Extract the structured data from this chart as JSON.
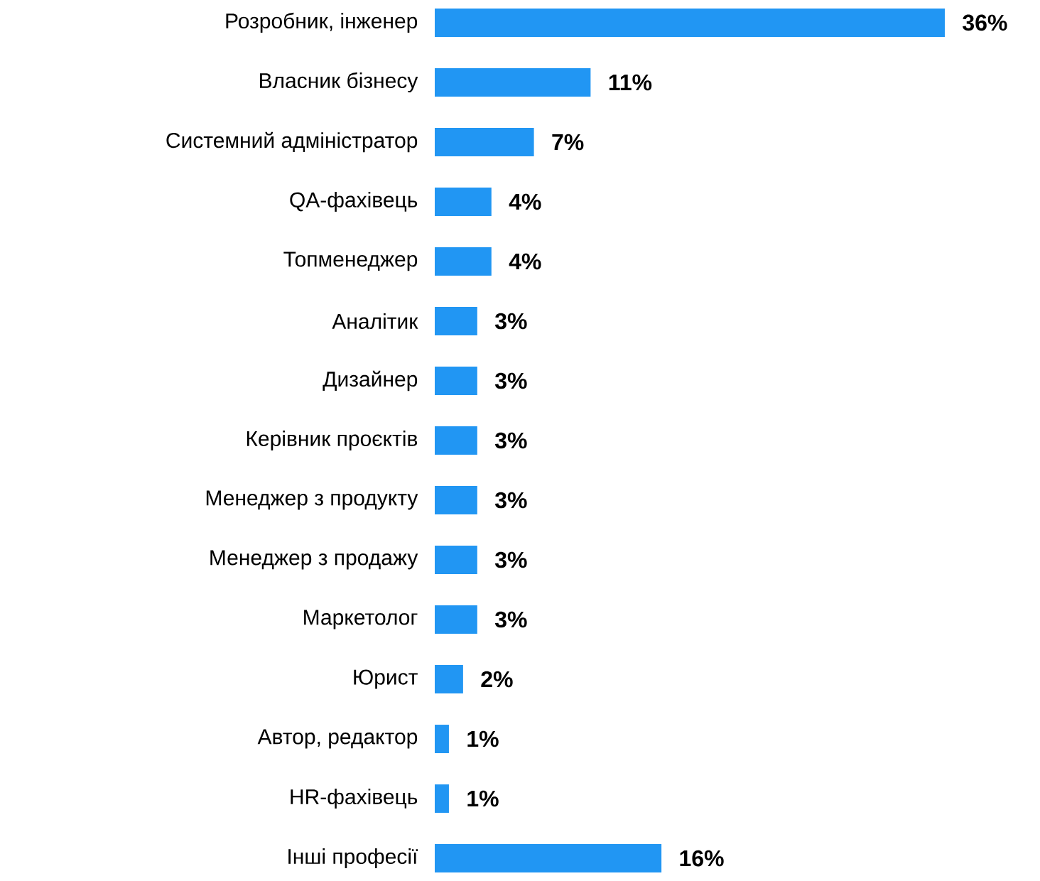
{
  "chart_data": {
    "type": "bar",
    "orientation": "horizontal",
    "color": "#2196f3",
    "tick_labels": "y",
    "categories": [
      "Розробник, інженер",
      "Власник бізнесу",
      "Системний адміністратор",
      "QA-фахівець",
      "Топменеджер",
      "Аналітик",
      "Дизайнер",
      "Керівник проєктів",
      "Менеджер з продукту",
      "Менеджер з продажу",
      "Маркетолог",
      "Юрист",
      "Автор, редактор",
      "HR-фахівець",
      "Інші професії"
    ],
    "values": [
      36,
      11,
      7,
      4,
      4,
      3,
      3,
      3,
      3,
      3,
      3,
      2,
      1,
      1,
      16
    ],
    "value_labels": [
      "36%",
      "11%",
      "7%",
      "4%",
      "4%",
      "3%",
      "3%",
      "3%",
      "3%",
      "3%",
      "3%",
      "2%",
      "1%",
      "1%",
      "16%"
    ]
  }
}
